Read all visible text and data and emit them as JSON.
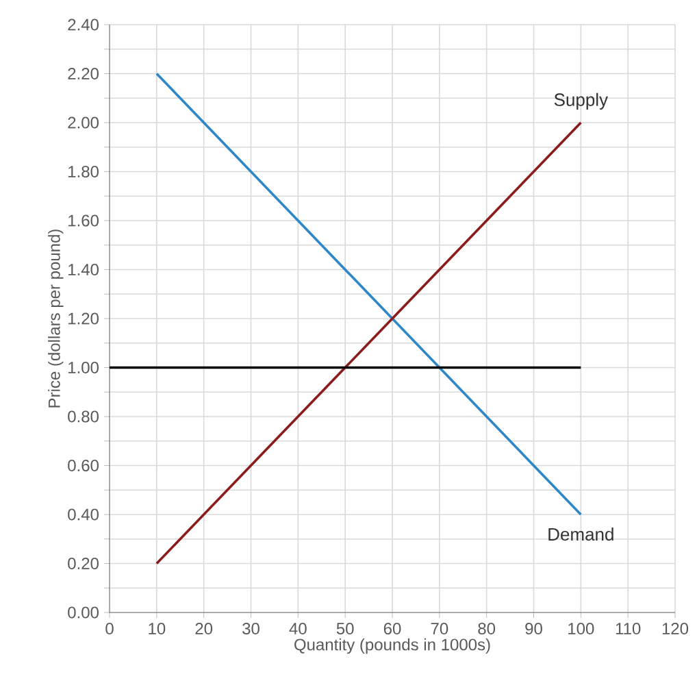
{
  "chart_data": {
    "type": "line",
    "xlabel": "Quantity (pounds in 1000s)",
    "ylabel": "Price (dollars per pound)",
    "xlim": [
      0,
      120
    ],
    "ylim": [
      0,
      2.4
    ],
    "xticks": [
      0,
      10,
      20,
      30,
      40,
      50,
      60,
      70,
      80,
      90,
      100,
      110,
      120
    ],
    "yticks": [
      {
        "value": 0,
        "label": "0.00"
      },
      {
        "value": 0.1,
        "label": null
      },
      {
        "value": 0.2,
        "label": "0.20"
      },
      {
        "value": 0.3,
        "label": null
      },
      {
        "value": 0.4,
        "label": "0.40"
      },
      {
        "value": 0.5,
        "label": null
      },
      {
        "value": 0.6,
        "label": "0.60"
      },
      {
        "value": 0.7,
        "label": null
      },
      {
        "value": 0.8,
        "label": "0.80"
      },
      {
        "value": 0.9,
        "label": null
      },
      {
        "value": 1.0,
        "label": "1.00"
      },
      {
        "value": 1.1,
        "label": null
      },
      {
        "value": 1.2,
        "label": "1.20"
      },
      {
        "value": 1.3,
        "label": null
      },
      {
        "value": 1.4,
        "label": "1.40"
      },
      {
        "value": 1.5,
        "label": null
      },
      {
        "value": 1.6,
        "label": "1.60"
      },
      {
        "value": 1.7,
        "label": null
      },
      {
        "value": 1.8,
        "label": "1.80"
      },
      {
        "value": 1.9,
        "label": null
      },
      {
        "value": 2.0,
        "label": "2.00"
      },
      {
        "value": 2.1,
        "label": null
      },
      {
        "value": 2.2,
        "label": "2.20"
      },
      {
        "value": 2.3,
        "label": null
      },
      {
        "value": 2.4,
        "label": "2.40"
      }
    ],
    "grid": true,
    "marker": "none",
    "line_style": "solid",
    "series": [
      {
        "name": "Demand",
        "color": "#2e88c8",
        "x": [
          10,
          100
        ],
        "values": [
          2.2,
          0.4
        ]
      },
      {
        "name": "Supply",
        "color": "#8b1c1c",
        "x": [
          10,
          100
        ],
        "values": [
          0.2,
          2.0
        ]
      },
      {
        "color": "#000000",
        "x": [
          0,
          100
        ],
        "values": [
          1.0,
          1.0
        ]
      }
    ]
  }
}
